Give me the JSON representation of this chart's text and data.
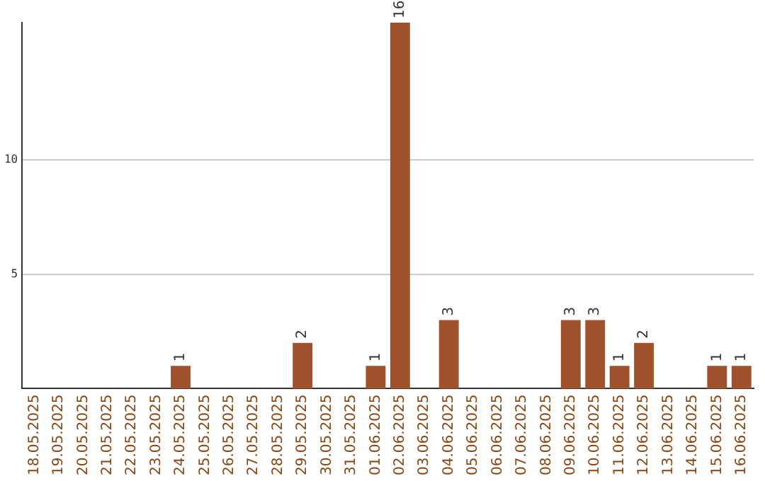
{
  "chart_data": {
    "type": "bar",
    "categories": [
      "18.05.2025",
      "19.05.2025",
      "20.05.2025",
      "21.05.2025",
      "22.05.2025",
      "23.05.2025",
      "24.05.2025",
      "25.05.2025",
      "26.05.2025",
      "27.05.2025",
      "28.05.2025",
      "29.05.2025",
      "30.05.2025",
      "31.05.2025",
      "01.06.2025",
      "02.06.2025",
      "03.06.2025",
      "04.06.2025",
      "05.06.2025",
      "06.06.2025",
      "07.06.2025",
      "08.06.2025",
      "09.06.2025",
      "10.06.2025",
      "11.06.2025",
      "12.06.2025",
      "13.06.2025",
      "14.06.2025",
      "15.06.2025",
      "16.06.2025"
    ],
    "values": [
      0,
      0,
      0,
      0,
      0,
      0,
      1,
      0,
      0,
      0,
      0,
      2,
      0,
      0,
      1,
      16,
      0,
      3,
      0,
      0,
      0,
      0,
      3,
      3,
      1,
      2,
      0,
      0,
      1,
      1
    ],
    "value_labels": [
      null,
      null,
      null,
      null,
      null,
      null,
      "1",
      null,
      null,
      null,
      null,
      "2",
      null,
      null,
      "1",
      "16",
      null,
      "3",
      null,
      null,
      null,
      null,
      "3",
      "3",
      "1",
      "2",
      null,
      null,
      "1",
      "1"
    ],
    "color": "#a0522d",
    "ylim": [
      0,
      16
    ],
    "yticks": [
      5,
      10
    ],
    "grid": "y",
    "legend": false
  }
}
